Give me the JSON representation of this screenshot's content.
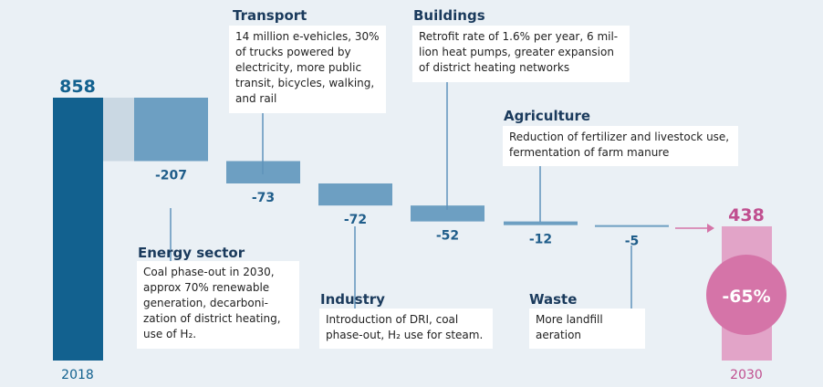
{
  "colors": {
    "background": "#eaf0f5",
    "start_bar": "#12618f",
    "step_bar": "#6d9fc2",
    "band": "#cad8e3",
    "end_bar": "#e2a4c8",
    "end_circle": "#d574a8",
    "end_text": "#c04f8f",
    "title_text": "#1a3a5c"
  },
  "chart_data": {
    "type": "waterfall",
    "start": {
      "label": "2018",
      "value": 858
    },
    "end": {
      "label": "2030",
      "value": 438,
      "reduction_label": "-65%"
    },
    "steps": [
      {
        "name": "Energy sector",
        "value": -207,
        "label": "-207",
        "description": "Coal phase-out in 2030, approx 70% renewable generation, decarboni-zation of district heating, use of H₂."
      },
      {
        "name": "Transport",
        "value": -73,
        "label": "-73",
        "description": "14 million e-vehicles, 30% of trucks powered by electricity, more public transit, bicycles, walking, and rail"
      },
      {
        "name": "Industry",
        "value": -72,
        "label": "-72",
        "description": "Introduction of DRI, coal phase-out, H₂ use for steam."
      },
      {
        "name": "Buildings",
        "value": -52,
        "label": "-52",
        "description": "Retrofit rate of 1.6% per year, 6 mil-lion heat pumps, greater expansion of district heating networks"
      },
      {
        "name": "Agriculture",
        "value": -12,
        "label": "-12",
        "description": "Reduction of fertilizer and livestock use, fermentation of farm manure"
      },
      {
        "name": "Waste",
        "value": -5,
        "label": "-5",
        "description": "More landfill aeration"
      }
    ],
    "y_axis": "none",
    "grid": false,
    "legend": "none"
  }
}
